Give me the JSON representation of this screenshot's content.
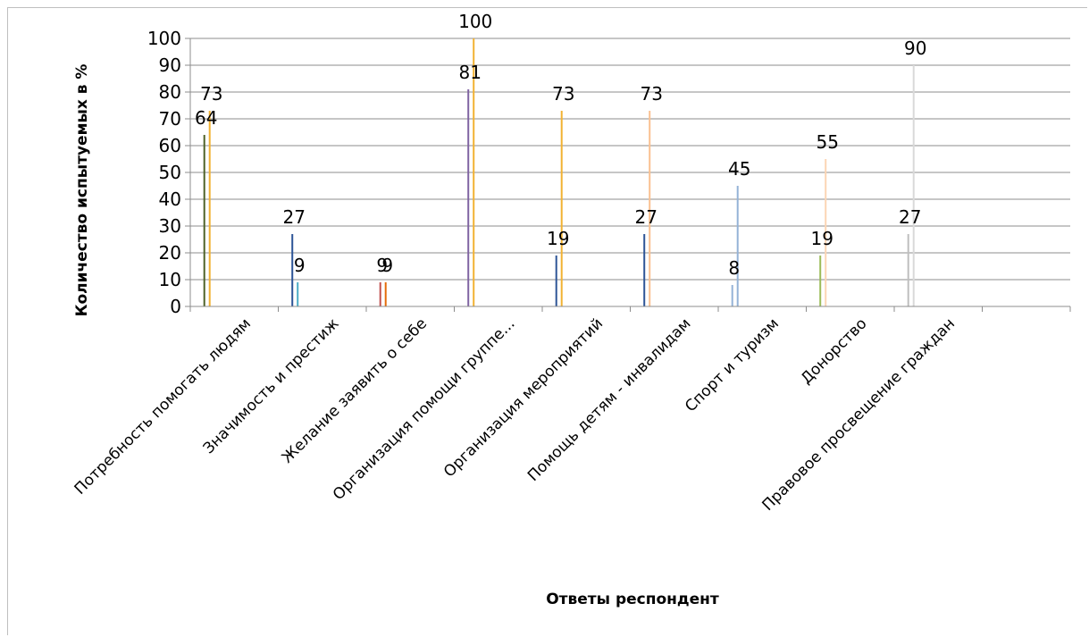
{
  "chart_data": {
    "type": "bar",
    "title": "",
    "xlabel": "Ответы респондент",
    "ylabel": "Количество испытуемых в %",
    "ylim": [
      0,
      100
    ],
    "yticks": [
      "0",
      "10",
      "20",
      "30",
      "40",
      "50",
      "60",
      "70",
      "80",
      "90",
      "100"
    ],
    "grid": true,
    "categories": [
      "Потребность помогать людям",
      "Значимость и престиж",
      "Желание заявить о себе",
      "Организация помощи группе...",
      "Организация мероприятий",
      "Помощь детям - инвалидам",
      "Спорт и туризм",
      "Донорство",
      "Правовое просвещение граждан"
    ],
    "series": [
      {
        "values": [
          64,
          27,
          9,
          81,
          19,
          27,
          8,
          19,
          27
        ],
        "colors": [
          "#4f6228",
          "#2e5597",
          "#c0504d",
          "#8064a2",
          "#2e5597",
          "#2e5597",
          "#95b3d7",
          "#9bbb59",
          "#bfbfbf"
        ]
      },
      {
        "values": [
          73,
          9,
          9,
          100,
          73,
          73,
          45,
          55,
          90
        ],
        "colors": [
          "#f2b233",
          "#4bacc6",
          "#e46c0a",
          "#f2b233",
          "#f2b233",
          "#fac090",
          "#95b3d7",
          "#fcd5b4",
          "#d9d9d9"
        ]
      }
    ]
  }
}
